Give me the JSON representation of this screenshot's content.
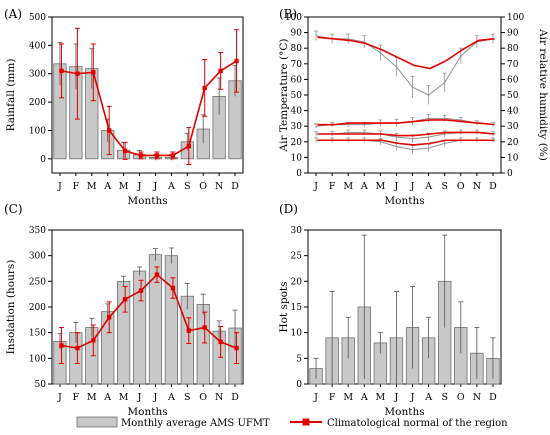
{
  "months": [
    "J",
    "F",
    "M",
    "A",
    "M",
    "J",
    "J",
    "A",
    "S",
    "O",
    "N",
    "D"
  ],
  "xlabel": "Months",
  "colors": {
    "bar_fill": "#c8c8c8",
    "bar_stroke": "#707070",
    "line": "#e00000",
    "error_bar": "#555555",
    "gray_line": "#909090"
  },
  "legend": {
    "bar_label": "Monthly average AMS UFMT",
    "line_label": "Climatological normal of the region"
  },
  "chart_data": [
    {
      "panel": "(A)",
      "type": "bar",
      "ylabel": "Rainfall (mm)",
      "ylim": [
        -50,
        500
      ],
      "yticks": [
        0,
        100,
        200,
        300,
        400,
        500
      ],
      "bars": [
        335,
        325,
        318,
        100,
        30,
        15,
        5,
        5,
        60,
        105,
        220,
        275
      ],
      "bar_err": [
        75,
        80,
        70,
        40,
        28,
        15,
        10,
        10,
        30,
        50,
        65,
        55
      ],
      "line": [
        310,
        300,
        305,
        100,
        28,
        12,
        12,
        12,
        45,
        250,
        310,
        345
      ],
      "line_err": [
        95,
        160,
        100,
        85,
        30,
        12,
        12,
        12,
        65,
        100,
        65,
        110
      ]
    },
    {
      "panel": "(B)",
      "type": "line",
      "ylabel": "Air Temperature (°C)",
      "y2label": "Air relative humidity (%)",
      "ylim": [
        0,
        100
      ],
      "yticks": [
        0,
        10,
        20,
        30,
        40,
        50,
        60,
        70,
        80,
        90,
        100
      ],
      "y2ticks": [
        0,
        10,
        20,
        30,
        40,
        50,
        60,
        70,
        80,
        90,
        100
      ],
      "humidity_normal": [
        87,
        86,
        85,
        83,
        79,
        74,
        69,
        67,
        72,
        79,
        85,
        86
      ],
      "humidity_station": [
        88,
        86,
        86,
        84,
        77,
        68,
        55,
        50,
        58,
        75,
        84,
        86
      ],
      "humidity_err": [
        3,
        3,
        3,
        4,
        5,
        6,
        7,
        6,
        6,
        5,
        4,
        3
      ],
      "tmax_normal": [
        31,
        31,
        32,
        32,
        32,
        32,
        33,
        34,
        34,
        33,
        32,
        31
      ],
      "tmax_station": [
        30,
        31,
        31,
        31,
        32,
        32,
        33,
        35,
        35,
        34,
        32,
        31
      ],
      "tmean_normal": [
        25,
        25,
        25,
        25,
        25,
        24,
        24,
        25,
        26,
        26,
        26,
        25
      ],
      "tmean_station": [
        25,
        25,
        26,
        26,
        25,
        23,
        22,
        23,
        25,
        26,
        26,
        25
      ],
      "tmin_normal": [
        21,
        21,
        21,
        21,
        21,
        19,
        18,
        19,
        21,
        21,
        21,
        21
      ],
      "tmin_station": [
        21,
        21,
        21,
        21,
        20,
        17,
        15,
        16,
        19,
        21,
        21,
        21
      ],
      "temp_err": [
        1.5,
        1.5,
        1.5,
        1.5,
        2,
        2.5,
        2.5,
        2.5,
        2,
        1.5,
        1.5,
        1.5
      ]
    },
    {
      "panel": "(C)",
      "type": "bar",
      "ylabel": "Insolation (hours)",
      "ylim": [
        50,
        350
      ],
      "yticks": [
        50,
        100,
        150,
        200,
        250,
        300,
        350
      ],
      "bars": [
        133,
        150,
        160,
        191,
        250,
        270,
        302,
        300,
        221,
        205,
        153,
        159
      ],
      "bar_err": [
        15,
        20,
        18,
        15,
        10,
        8,
        12,
        15,
        25,
        20,
        20,
        35
      ],
      "line": [
        125,
        120,
        135,
        180,
        215,
        232,
        263,
        237,
        154,
        160,
        132,
        120
      ],
      "line_err": [
        35,
        30,
        30,
        30,
        25,
        20,
        15,
        20,
        25,
        30,
        30,
        30
      ]
    },
    {
      "panel": "(D)",
      "type": "bar",
      "ylabel": "Hot spots",
      "ylim": [
        0,
        30
      ],
      "yticks": [
        0,
        5,
        10,
        15,
        20,
        25,
        30
      ],
      "bars": [
        3,
        9,
        9,
        15,
        8,
        9,
        11,
        9,
        20,
        11,
        6,
        5
      ],
      "bar_err": [
        2,
        9,
        4,
        14,
        2,
        9,
        8,
        4,
        9,
        5,
        5,
        4
      ]
    }
  ]
}
